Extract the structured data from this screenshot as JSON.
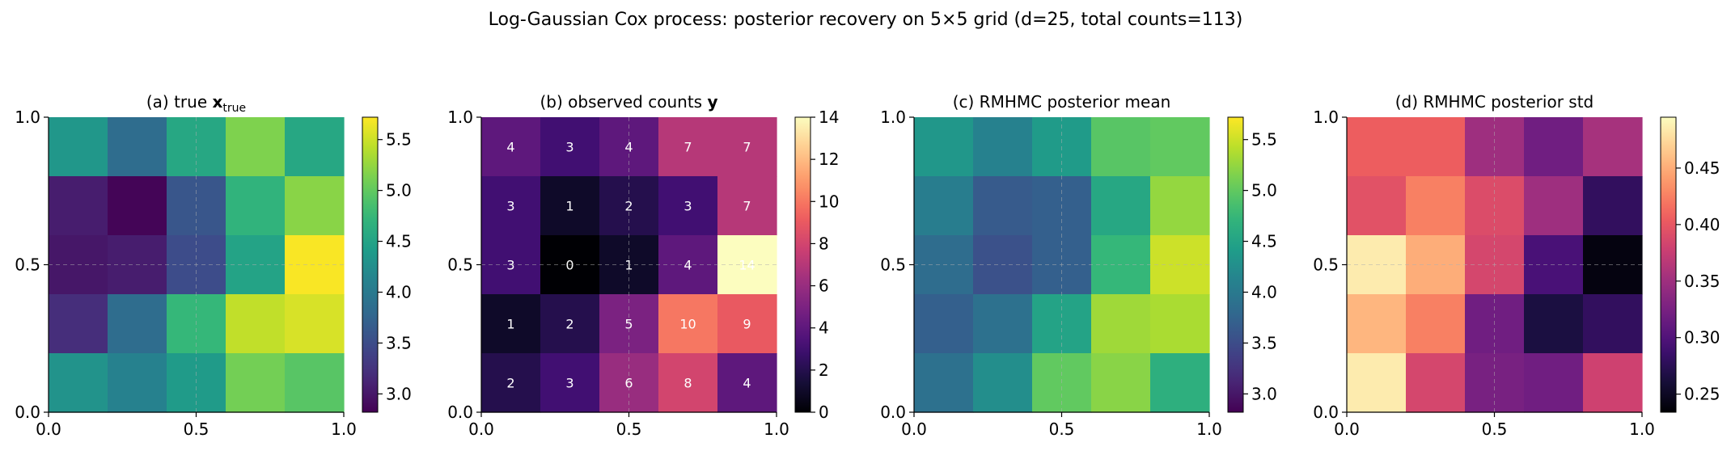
{
  "suptitle": "Log-Gaussian Cox process: posterior recovery on 5×5 grid (d=25, total counts=113)",
  "chart_data": [
    {
      "type": "heatmap",
      "title_prefix": "(a) true ",
      "title_math": "x",
      "title_subscript": "true",
      "colormap": "viridis",
      "xlim": [
        0,
        1
      ],
      "ylim": [
        0,
        1
      ],
      "xticks": [
        "0.0",
        "0.5",
        "1.0"
      ],
      "yticks": [
        "0.0",
        "0.5",
        "1.0"
      ],
      "grid": true,
      "colorbar": {
        "min": 2.82,
        "max": 5.72,
        "ticks": [
          "3.0",
          "3.5",
          "4.0",
          "4.5",
          "5.0",
          "5.5"
        ],
        "tick_values": [
          3.0,
          3.5,
          4.0,
          4.5,
          5.0,
          5.5
        ]
      },
      "rows_top_to_bottom": [
        [
          4.35,
          3.85,
          4.55,
          5.15,
          4.55
        ],
        [
          3.05,
          2.85,
          3.6,
          4.7,
          5.2
        ],
        [
          3.0,
          3.05,
          3.5,
          4.5,
          5.7
        ],
        [
          3.2,
          3.85,
          4.75,
          5.45,
          5.55
        ],
        [
          4.3,
          4.1,
          4.4,
          5.1,
          4.95
        ]
      ]
    },
    {
      "type": "heatmap",
      "title_prefix": "(b) observed counts ",
      "title_math": "y",
      "title_subscript": "",
      "colormap": "magma",
      "xlim": [
        0,
        1
      ],
      "ylim": [
        0,
        1
      ],
      "xticks": [
        "0.0",
        "0.5",
        "1.0"
      ],
      "yticks": [
        "0.0",
        "0.5",
        "1.0"
      ],
      "grid": true,
      "colorbar": {
        "min": 0,
        "max": 14,
        "ticks": [
          "0",
          "2",
          "4",
          "6",
          "8",
          "10",
          "12",
          "14"
        ],
        "tick_values": [
          0,
          2,
          4,
          6,
          8,
          10,
          12,
          14
        ]
      },
      "show_cell_labels": true,
      "rows_top_to_bottom": [
        [
          4,
          3,
          4,
          7,
          7
        ],
        [
          3,
          1,
          2,
          3,
          7
        ],
        [
          3,
          0,
          1,
          4,
          14
        ],
        [
          1,
          2,
          5,
          10,
          9
        ],
        [
          2,
          3,
          6,
          8,
          4
        ]
      ]
    },
    {
      "type": "heatmap",
      "title_prefix": "(c) RMHMC posterior mean",
      "title_math": "",
      "title_subscript": "",
      "colormap": "viridis",
      "xlim": [
        0,
        1
      ],
      "ylim": [
        0,
        1
      ],
      "xticks": [
        "0.0",
        "0.5",
        "1.0"
      ],
      "yticks": [
        "0.0",
        "0.5",
        "1.0"
      ],
      "grid": true,
      "colorbar": {
        "min": 2.82,
        "max": 5.72,
        "ticks": [
          "3.0",
          "3.5",
          "4.0",
          "4.5",
          "5.0",
          "5.5"
        ],
        "tick_values": [
          3.0,
          3.5,
          4.0,
          4.5,
          5.0,
          5.5
        ]
      },
      "rows_top_to_bottom": [
        [
          4.35,
          4.1,
          4.4,
          4.95,
          5.0
        ],
        [
          4.05,
          3.65,
          3.7,
          4.55,
          5.25
        ],
        [
          3.85,
          3.55,
          3.7,
          4.75,
          5.5
        ],
        [
          3.7,
          3.9,
          4.5,
          5.3,
          5.35
        ],
        [
          3.9,
          4.25,
          5.0,
          5.2,
          4.65
        ]
      ]
    },
    {
      "type": "heatmap",
      "title_prefix": "(d) RMHMC posterior std",
      "title_math": "",
      "title_subscript": "",
      "colormap": "magma",
      "xlim": [
        0,
        1
      ],
      "ylim": [
        0,
        1
      ],
      "xticks": [
        "0.0",
        "0.5",
        "1.0"
      ],
      "yticks": [
        "0.0",
        "0.5",
        "1.0"
      ],
      "grid": true,
      "colorbar": {
        "min": 0.234,
        "max": 0.495,
        "ticks": [
          "0.25",
          "0.30",
          "0.35",
          "0.40",
          "0.45"
        ],
        "tick_values": [
          0.25,
          0.3,
          0.35,
          0.4,
          0.45
        ]
      },
      "rows_top_to_bottom": [
        [
          0.405,
          0.405,
          0.35,
          0.32,
          0.355
        ],
        [
          0.395,
          0.425,
          0.39,
          0.35,
          0.28
        ],
        [
          0.485,
          0.45,
          0.385,
          0.295,
          0.24
        ],
        [
          0.455,
          0.425,
          0.32,
          0.265,
          0.28
        ],
        [
          0.485,
          0.385,
          0.325,
          0.32,
          0.38
        ]
      ]
    }
  ]
}
